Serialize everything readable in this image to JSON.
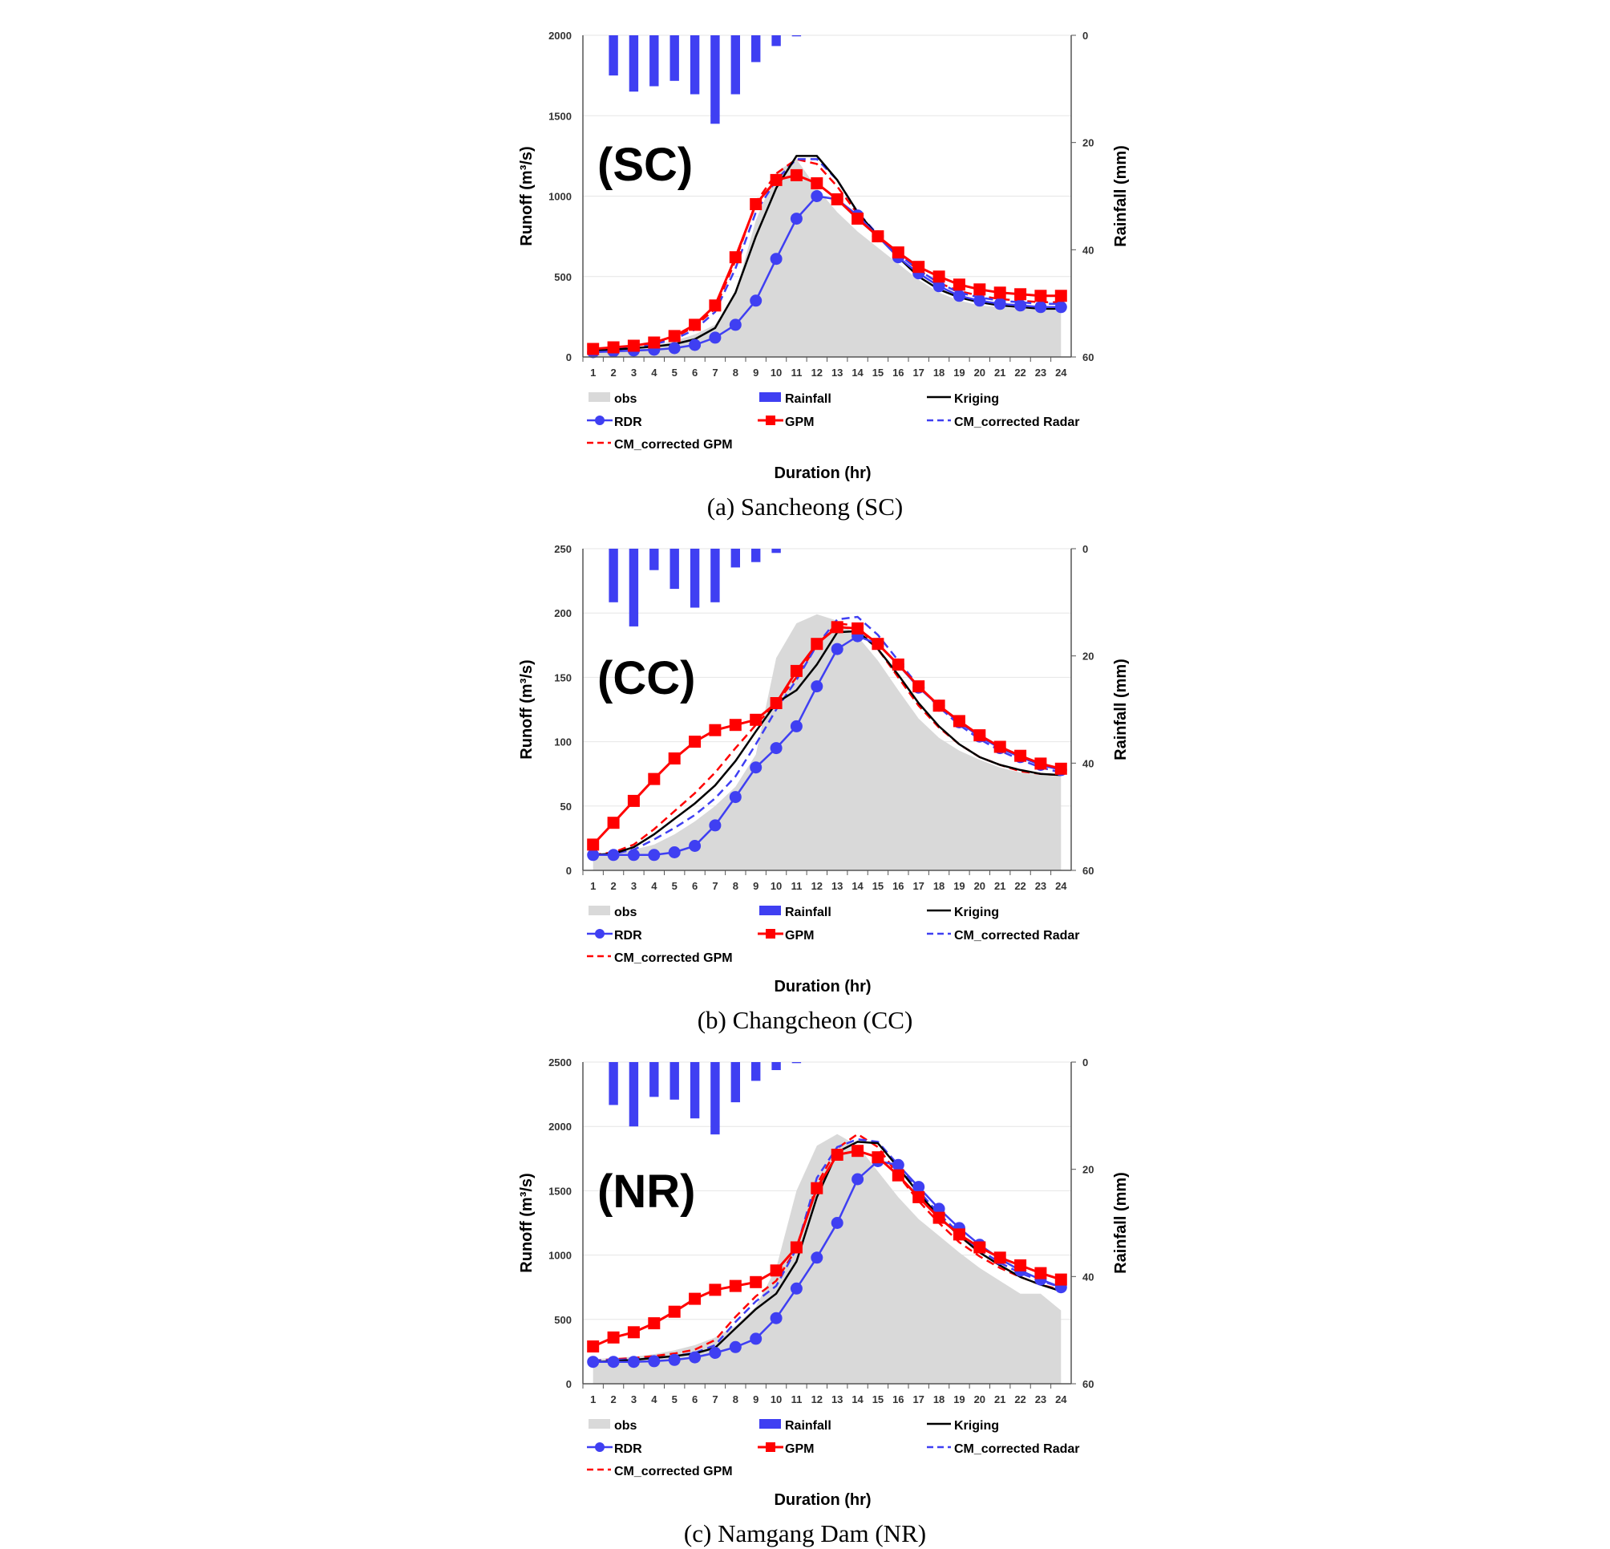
{
  "figure": {
    "legend": {
      "obs": "obs",
      "rainfall": "Rainfall",
      "kriging": "Kriging",
      "rdr": "RDR",
      "gpm": "GPM",
      "cm_radar": "CM_corrected Radar",
      "cm_gpm": "CM_corrected GPM"
    },
    "colors": {
      "obs": "#d9d9d9",
      "rainfall": "#3f3ff2",
      "kriging": "#000000",
      "rdr": "#3f3ff2",
      "gpm": "#ff0000",
      "cm_radar": "#3f3ff2",
      "cm_gpm": "#ff0000"
    }
  },
  "chart_data": [
    {
      "type": "line",
      "station_label": "(SC)",
      "caption": "(a) Sancheong (SC)",
      "xlabel": "Duration (hr)",
      "ylabel_left": "Runoff (m³/s)",
      "ylabel_right": "Rainfall (mm)",
      "x": [
        1,
        2,
        3,
        4,
        5,
        6,
        7,
        8,
        9,
        10,
        11,
        12,
        13,
        14,
        15,
        16,
        17,
        18,
        19,
        20,
        21,
        22,
        23,
        24
      ],
      "ylim_left": [
        0,
        2000
      ],
      "yticks_left": [
        0,
        500,
        1000,
        1500,
        2000
      ],
      "ylim_right_inverted": [
        0,
        60
      ],
      "yticks_right": [
        0,
        20,
        40,
        60
      ],
      "grid": true,
      "legend_position": "bottom",
      "rainfall": [
        0,
        7.5,
        10.5,
        9.5,
        8.5,
        11,
        16.5,
        11,
        5,
        2,
        0.2,
        0,
        0,
        0,
        0,
        0,
        0,
        0,
        0,
        0,
        0,
        0,
        0,
        0
      ],
      "series": [
        {
          "name": "obs",
          "kind": "area",
          "values": [
            30,
            40,
            50,
            70,
            100,
            140,
            200,
            400,
            850,
            1150,
            1230,
            1050,
            900,
            780,
            680,
            580,
            480,
            400,
            350,
            320,
            310,
            300,
            300,
            290
          ]
        },
        {
          "name": "Kriging",
          "kind": "line",
          "values": [
            40,
            45,
            55,
            65,
            80,
            110,
            180,
            400,
            750,
            1050,
            1250,
            1250,
            1100,
            900,
            750,
            620,
            500,
            420,
            370,
            340,
            320,
            310,
            300,
            300
          ]
        },
        {
          "name": "RDR",
          "kind": "line-circle",
          "values": [
            30,
            35,
            40,
            45,
            55,
            75,
            120,
            200,
            350,
            610,
            860,
            1000,
            980,
            880,
            750,
            620,
            520,
            440,
            380,
            350,
            330,
            320,
            310,
            310
          ]
        },
        {
          "name": "GPM",
          "kind": "line-square",
          "values": [
            50,
            60,
            70,
            90,
            130,
            200,
            320,
            620,
            950,
            1100,
            1130,
            1080,
            980,
            860,
            750,
            650,
            560,
            500,
            450,
            420,
            400,
            390,
            380,
            380
          ]
        },
        {
          "name": "CM_corrected Radar",
          "kind": "dash",
          "values": [
            40,
            50,
            60,
            80,
            110,
            170,
            280,
            550,
            900,
            1100,
            1230,
            1230,
            1100,
            900,
            760,
            640,
            540,
            460,
            400,
            370,
            350,
            340,
            330,
            330
          ]
        },
        {
          "name": "CM_corrected GPM",
          "kind": "dash",
          "values": [
            45,
            55,
            65,
            85,
            120,
            190,
            300,
            600,
            960,
            1140,
            1230,
            1200,
            1060,
            890,
            750,
            640,
            540,
            460,
            410,
            380,
            360,
            350,
            340,
            340
          ]
        }
      ]
    },
    {
      "type": "line",
      "station_label": "(CC)",
      "caption": "(b) Changcheon (CC)",
      "xlabel": "Duration (hr)",
      "ylabel_left": "Runoff (m³/s)",
      "ylabel_right": "Rainfall (mm)",
      "x": [
        1,
        2,
        3,
        4,
        5,
        6,
        7,
        8,
        9,
        10,
        11,
        12,
        13,
        14,
        15,
        16,
        17,
        18,
        19,
        20,
        21,
        22,
        23,
        24
      ],
      "ylim_left": [
        0,
        250
      ],
      "yticks_left": [
        0,
        50,
        100,
        150,
        200,
        250
      ],
      "ylim_right_inverted": [
        0,
        60
      ],
      "yticks_right": [
        0,
        20,
        40,
        60
      ],
      "grid": true,
      "legend_position": "bottom",
      "rainfall": [
        0,
        10,
        14.5,
        4,
        7.5,
        11,
        10,
        3.5,
        2.5,
        0.8,
        0,
        0,
        0,
        0,
        0,
        0,
        0,
        0,
        0,
        0,
        0,
        0,
        0,
        0
      ],
      "series": [
        {
          "name": "obs",
          "kind": "area",
          "values": [
            12,
            14,
            16,
            20,
            28,
            38,
            50,
            65,
            90,
            165,
            192,
            199,
            194,
            182,
            163,
            140,
            118,
            103,
            93,
            86,
            80,
            76,
            74,
            73
          ]
        },
        {
          "name": "Kriging",
          "kind": "line",
          "values": [
            12,
            13,
            18,
            28,
            40,
            52,
            66,
            85,
            108,
            130,
            140,
            160,
            185,
            186,
            172,
            152,
            130,
            112,
            98,
            88,
            82,
            78,
            75,
            74
          ]
        },
        {
          "name": "RDR",
          "kind": "line-circle",
          "values": [
            12,
            12,
            12,
            12,
            14,
            19,
            35,
            57,
            80,
            95,
            112,
            143,
            172,
            182,
            176,
            160,
            142,
            128,
            115,
            104,
            95,
            88,
            82,
            78
          ]
        },
        {
          "name": "GPM",
          "kind": "line-square",
          "values": [
            20,
            37,
            54,
            71,
            87,
            100,
            109,
            113,
            117,
            130,
            155,
            176,
            189,
            188,
            176,
            160,
            143,
            128,
            116,
            105,
            96,
            89,
            83,
            79
          ]
        },
        {
          "name": "CM_corrected Radar",
          "kind": "dash",
          "values": [
            12,
            13,
            16,
            24,
            33,
            43,
            56,
            73,
            98,
            125,
            148,
            175,
            195,
            197,
            183,
            163,
            143,
            127,
            113,
            102,
            93,
            86,
            80,
            76
          ]
        },
        {
          "name": "CM_corrected GPM",
          "kind": "dash",
          "values": [
            12,
            14,
            20,
            32,
            46,
            60,
            76,
            95,
            113,
            130,
            150,
            175,
            192,
            190,
            172,
            150,
            128,
            111,
            98,
            88,
            82,
            77,
            75,
            74
          ]
        }
      ]
    },
    {
      "type": "line",
      "station_label": "(NR)",
      "caption": "(c) Namgang Dam (NR)",
      "xlabel": "Duration (hr)",
      "ylabel_left": "Runoff (m³/s)",
      "ylabel_right": "Rainfall (mm)",
      "x": [
        1,
        2,
        3,
        4,
        5,
        6,
        7,
        8,
        9,
        10,
        11,
        12,
        13,
        14,
        15,
        16,
        17,
        18,
        19,
        20,
        21,
        22,
        23,
        24
      ],
      "ylim_left": [
        0,
        2500
      ],
      "yticks_left": [
        0,
        500,
        1000,
        1500,
        2000,
        2500
      ],
      "ylim_right_inverted": [
        0,
        60
      ],
      "yticks_right": [
        0,
        20,
        40,
        60
      ],
      "grid": true,
      "legend_position": "bottom",
      "rainfall": [
        0,
        8,
        12,
        6.5,
        7,
        10.5,
        13.5,
        7.5,
        3.5,
        1.5,
        0.2,
        0,
        0,
        0,
        0,
        0,
        0,
        0,
        0,
        0,
        0,
        0,
        0,
        0
      ],
      "series": [
        {
          "name": "obs",
          "kind": "area",
          "values": [
            190,
            200,
            210,
            230,
            260,
            300,
            360,
            450,
            600,
            900,
            1500,
            1850,
            1940,
            1850,
            1650,
            1450,
            1280,
            1150,
            1020,
            900,
            800,
            700,
            700,
            570
          ]
        },
        {
          "name": "Kriging",
          "kind": "line",
          "values": [
            170,
            175,
            185,
            200,
            215,
            235,
            280,
            430,
            580,
            700,
            950,
            1450,
            1800,
            1880,
            1870,
            1680,
            1480,
            1300,
            1150,
            1020,
            920,
            830,
            770,
            720
          ]
        },
        {
          "name": "RDR",
          "kind": "line-circle",
          "values": [
            170,
            170,
            170,
            175,
            185,
            205,
            240,
            285,
            350,
            510,
            740,
            980,
            1250,
            1590,
            1730,
            1700,
            1530,
            1360,
            1210,
            1080,
            970,
            880,
            810,
            750
          ]
        },
        {
          "name": "GPM",
          "kind": "line-square",
          "values": [
            290,
            360,
            400,
            470,
            560,
            660,
            730,
            760,
            790,
            880,
            1060,
            1520,
            1780,
            1810,
            1760,
            1620,
            1450,
            1290,
            1160,
            1060,
            980,
            920,
            860,
            810
          ]
        },
        {
          "name": "CM_corrected Radar",
          "kind": "dash",
          "values": [
            180,
            185,
            190,
            200,
            215,
            240,
            300,
            480,
            640,
            760,
            1050,
            1600,
            1840,
            1900,
            1880,
            1700,
            1500,
            1320,
            1170,
            1040,
            940,
            860,
            800,
            750
          ]
        },
        {
          "name": "CM_corrected GPM",
          "kind": "dash",
          "values": [
            180,
            190,
            200,
            215,
            235,
            265,
            340,
            520,
            680,
            800,
            1050,
            1550,
            1830,
            1940,
            1840,
            1620,
            1420,
            1250,
            1100,
            990,
            900,
            830,
            770,
            730
          ]
        }
      ]
    }
  ]
}
